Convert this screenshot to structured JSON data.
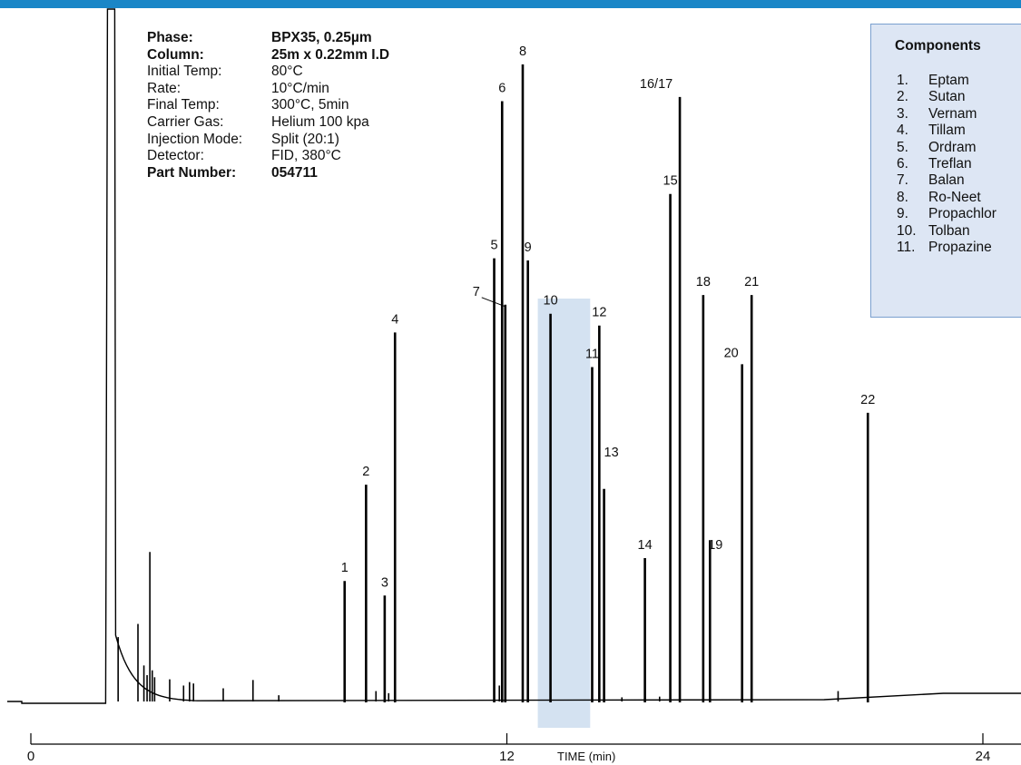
{
  "colors": {
    "accent_bar": "#1a86c7",
    "highlight_band": "#d4e2f1",
    "components_box_bg": "#dde6f4",
    "components_box_border": "#7aa0cf",
    "trace": "#000000"
  },
  "conditions": {
    "rows": [
      {
        "label": "Phase:",
        "value": "BPX35, 0.25µm",
        "bold": true
      },
      {
        "label": "Column:",
        "value": "25m x 0.22mm I.D",
        "bold": true
      },
      {
        "label": "Initial Temp:",
        "value": "80°C",
        "bold": false
      },
      {
        "label": "Rate:",
        "value": "10°C/min",
        "bold": false
      },
      {
        "label": "Final Temp:",
        "value": "300°C, 5min",
        "bold": false
      },
      {
        "label": "Carrier Gas:",
        "value": "Helium 100 kpa",
        "bold": false
      },
      {
        "label": "Injection Mode:",
        "value": "Split (20:1)",
        "bold": false
      },
      {
        "label": "Detector:",
        "value": "FID, 380°C",
        "bold": false
      },
      {
        "label": "Part Number:",
        "value": "054711",
        "bold": true
      }
    ]
  },
  "components": {
    "title": "Components",
    "items": [
      {
        "num": "1.",
        "name": "Eptam"
      },
      {
        "num": "2.",
        "name": "Sutan"
      },
      {
        "num": "3.",
        "name": "Vernam"
      },
      {
        "num": "4.",
        "name": "Tillam"
      },
      {
        "num": "5.",
        "name": "Ordram"
      },
      {
        "num": "6.",
        "name": "Treflan"
      },
      {
        "num": "7.",
        "name": "Balan"
      },
      {
        "num": "8.",
        "name": "Ro-Neet"
      },
      {
        "num": "9.",
        "name": "Propachlor"
      },
      {
        "num": "10.",
        "name": "Tolban"
      },
      {
        "num": "11.",
        "name": "Propazine"
      }
    ]
  },
  "chart_data": {
    "type": "line",
    "xlabel": "TIME (min)",
    "x_ticks": [
      0,
      12,
      24
    ],
    "xlim": [
      0,
      24.5
    ],
    "ylim": [
      0,
      100
    ],
    "highlight_band": [
      12.78,
      14.1
    ],
    "solvent_peak": {
      "x": 2.0,
      "y": 100
    },
    "peaks": [
      {
        "label": "1",
        "x": 7.91,
        "y": 17.4
      },
      {
        "label": "2",
        "x": 8.45,
        "y": 31.3
      },
      {
        "label": "3",
        "x": 8.92,
        "y": 15.3
      },
      {
        "label": "4",
        "x": 9.18,
        "y": 53.3
      },
      {
        "label": "5",
        "x": 11.68,
        "y": 64.0
      },
      {
        "label": "6",
        "x": 11.88,
        "y": 86.7
      },
      {
        "label": "7",
        "x": 11.96,
        "y": 57.3
      },
      {
        "label": "8",
        "x": 12.4,
        "y": 92.0
      },
      {
        "label": "9",
        "x": 12.53,
        "y": 63.7
      },
      {
        "label": "10",
        "x": 13.1,
        "y": 56.0
      },
      {
        "label": "11",
        "x": 14.15,
        "y": 48.3
      },
      {
        "label": "12",
        "x": 14.33,
        "y": 54.3
      },
      {
        "label": "13",
        "x": 14.45,
        "y": 30.7
      },
      {
        "label": "14",
        "x": 15.48,
        "y": 20.7
      },
      {
        "label": "15",
        "x": 16.12,
        "y": 73.3
      },
      {
        "label": "16/17",
        "x": 16.36,
        "y": 87.3
      },
      {
        "label": "18",
        "x": 16.95,
        "y": 58.7
      },
      {
        "label": "19",
        "x": 17.12,
        "y": 23.3
      },
      {
        "label": "20",
        "x": 17.93,
        "y": 48.7
      },
      {
        "label": "21",
        "x": 18.17,
        "y": 58.7
      },
      {
        "label": "22",
        "x": 21.1,
        "y": 41.7
      }
    ],
    "minor_peaks": [
      {
        "x": 2.2,
        "y": 9.3
      },
      {
        "x": 2.7,
        "y": 11.2
      },
      {
        "x": 2.85,
        "y": 5.2
      },
      {
        "x": 2.93,
        "y": 3.8
      },
      {
        "x": 3.0,
        "y": 21.6
      },
      {
        "x": 3.06,
        "y": 4.5
      },
      {
        "x": 3.12,
        "y": 3.5
      },
      {
        "x": 3.5,
        "y": 3.2
      },
      {
        "x": 3.85,
        "y": 2.3
      },
      {
        "x": 4.0,
        "y": 2.8
      },
      {
        "x": 4.1,
        "y": 2.6
      },
      {
        "x": 4.85,
        "y": 1.9
      },
      {
        "x": 5.6,
        "y": 3.1
      },
      {
        "x": 6.25,
        "y": 0.9
      },
      {
        "x": 8.7,
        "y": 1.5
      },
      {
        "x": 9.02,
        "y": 1.2
      },
      {
        "x": 11.81,
        "y": 2.3
      },
      {
        "x": 14.9,
        "y": 0.6
      },
      {
        "x": 15.85,
        "y": 0.7
      },
      {
        "x": 20.35,
        "y": 1.5
      }
    ]
  }
}
